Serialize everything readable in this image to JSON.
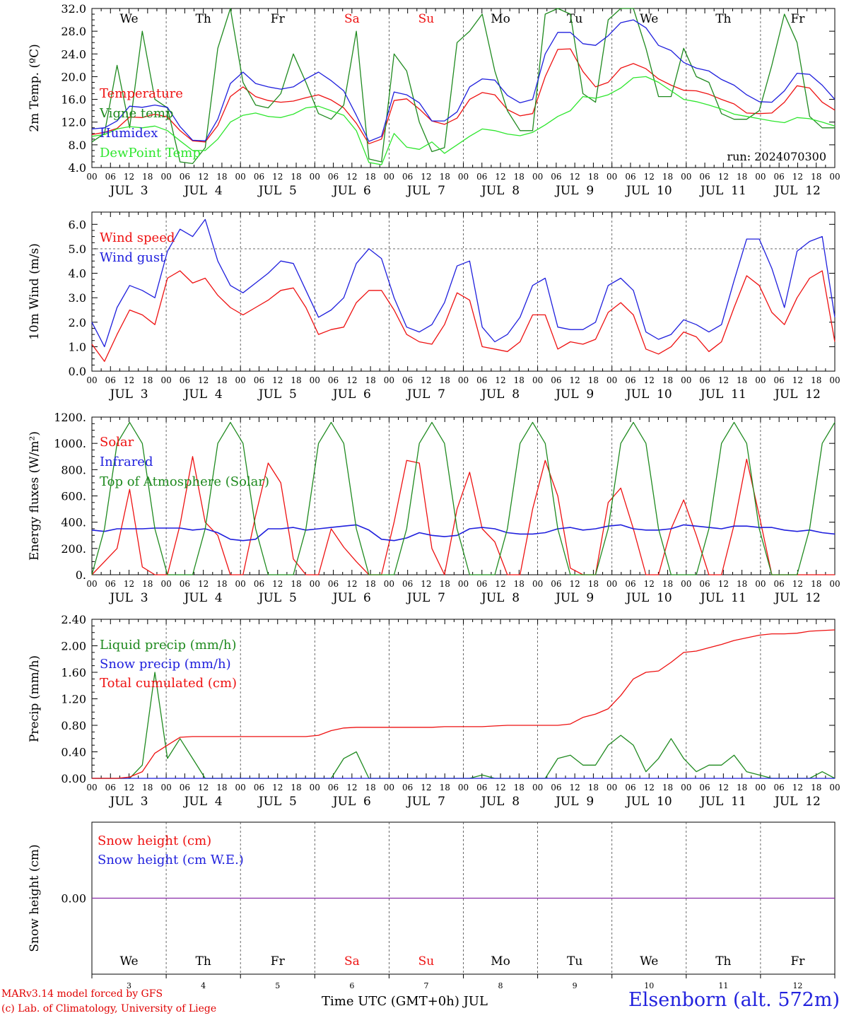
{
  "chart_data": {
    "type": "line",
    "title": "Elsenborn (alt. 572m)",
    "xlabel": "Time UTC (GMT+0h) JUL",
    "days": [
      "JUL 3",
      "JUL 4",
      "JUL 5",
      "JUL 6",
      "JUL 7",
      "JUL 8",
      "JUL 9",
      "JUL 10",
      "JUL 11",
      "JUL 12"
    ],
    "day_short": [
      "3",
      "4",
      "5",
      "6",
      "7",
      "8",
      "9",
      "10",
      "11",
      "12"
    ],
    "weekdays": [
      "We",
      "Th",
      "Fr",
      "Sa",
      "Su",
      "Mo",
      "Tu",
      "We",
      "Th",
      "Fr"
    ],
    "weekend_indices": [
      3,
      4
    ],
    "hour_ticks": [
      "00",
      "06",
      "12",
      "18"
    ],
    "run_label": "run: 2024070300",
    "panels": [
      {
        "id": "temp",
        "ylabel": "2m Temp. (ºC)",
        "ylim": [
          4,
          32
        ],
        "yticks": [
          "4.0",
          "8.0",
          "12.0",
          "16.0",
          "20.0",
          "24.0",
          "28.0",
          "32.0"
        ],
        "series": [
          {
            "name": "Temperature",
            "color": "#ee1111",
            "values": [
              9.8,
              10.2,
              10.9,
              12.9,
              12.8,
              13.4,
              12.9,
              10.5,
              8.7,
              8.5,
              11.4,
              16.5,
              18.2,
              16.5,
              15.8,
              15.5,
              15.7,
              16.3,
              16.8,
              15.9,
              14.5,
              11.8,
              8.2,
              9.0,
              15.8,
              16.1,
              14.3,
              12.2,
              11.6,
              12.7,
              16.0,
              17.2,
              16.8,
              14.2,
              13.1,
              13.5,
              20.0,
              24.8,
              24.9,
              20.9,
              18.2,
              19.0,
              21.5,
              22.3,
              21.4,
              19.6,
              18.5,
              17.6,
              17.5,
              16.9,
              16.0,
              15.2,
              13.6,
              13.5,
              13.6,
              15.5,
              18.4,
              18.0,
              15.5,
              14.1
            ]
          },
          {
            "name": "Vigne temp",
            "color": "#1f8a1f",
            "values": [
              8.5,
              10.0,
              22.0,
              11.0,
              28.0,
              16.0,
              14.5,
              5.0,
              4.7,
              7.5,
              25.0,
              32.0,
              19.0,
              15.0,
              14.5,
              17.0,
              24.0,
              19.0,
              13.5,
              12.5,
              15.0,
              28.0,
              5.5,
              5.0,
              24.0,
              21.0,
              12.0,
              6.8,
              7.5,
              26.0,
              28.0,
              31.0,
              21.0,
              14.0,
              10.5,
              10.5,
              31.0,
              33.0,
              31.0,
              17.0,
              15.5,
              30.0,
              32.0,
              33.0,
              25.0,
              16.5,
              16.5,
              25.0,
              20.0,
              19.0,
              13.5,
              12.5,
              12.5,
              14.0,
              22.0,
              31.0,
              26.0,
              13.0,
              11.0,
              11.0
            ]
          },
          {
            "name": "Humidex",
            "color": "#1f1fdd",
            "values": [
              10.8,
              11.0,
              12.2,
              14.8,
              14.6,
              15.0,
              14.6,
              11.2,
              8.8,
              8.7,
              12.5,
              18.8,
              20.8,
              18.8,
              18.2,
              17.8,
              18.2,
              19.6,
              20.8,
              19.3,
              17.5,
              13.2,
              8.6,
              9.5,
              17.3,
              16.8,
              15.4,
              12.2,
              12.2,
              13.8,
              18.2,
              19.6,
              19.4,
              16.7,
              15.4,
              16.0,
              24.0,
              27.8,
              27.8,
              25.8,
              25.5,
              27.2,
              29.5,
              30.0,
              28.6,
              25.5,
              24.6,
              22.5,
              21.5,
              21.0,
              19.5,
              18.5,
              16.8,
              15.6,
              15.5,
              17.5,
              20.6,
              20.4,
              18.5,
              16.0
            ]
          },
          {
            "name": "DewPoint Temp",
            "color": "#2ee62e",
            "values": [
              9.5,
              9.8,
              10.8,
              11.2,
              11.0,
              11.3,
              10.5,
              8.7,
              7.0,
              7.0,
              9.0,
              12.0,
              13.2,
              13.6,
              13.0,
              12.8,
              13.4,
              14.5,
              14.8,
              14.0,
              13.2,
              10.5,
              4.9,
              4.5,
              10.0,
              7.6,
              7.2,
              8.5,
              6.5,
              8.0,
              9.5,
              10.8,
              10.5,
              9.9,
              9.6,
              10.2,
              11.5,
              13.0,
              14.0,
              16.5,
              16.2,
              16.8,
              18.0,
              19.8,
              20.0,
              19.0,
              17.5,
              16.0,
              15.6,
              15.0,
              14.3,
              13.4,
              13.0,
              12.6,
              12.2,
              11.9,
              12.8,
              12.6,
              12.0,
              11.3
            ]
          }
        ]
      },
      {
        "id": "wind",
        "ylabel": "10m Wind (m/s)",
        "ylim": [
          0,
          6.5
        ],
        "yticks": [
          "0.0",
          "1.0",
          "2.0",
          "3.0",
          "4.0",
          "5.0",
          "6.0"
        ],
        "hline": 5.0,
        "series": [
          {
            "name": "Wind speed",
            "color": "#ee1111",
            "values": [
              1.1,
              0.4,
              1.5,
              2.5,
              2.3,
              1.9,
              3.8,
              4.1,
              3.6,
              3.8,
              3.1,
              2.6,
              2.3,
              2.6,
              2.9,
              3.3,
              3.4,
              2.6,
              1.5,
              1.7,
              1.8,
              2.8,
              3.3,
              3.3,
              2.5,
              1.5,
              1.2,
              1.1,
              1.9,
              3.2,
              2.9,
              1.0,
              0.9,
              0.8,
              1.2,
              2.3,
              2.3,
              0.9,
              1.2,
              1.1,
              1.3,
              2.4,
              2.8,
              2.3,
              0.9,
              0.7,
              1.0,
              1.6,
              1.4,
              0.8,
              1.2,
              2.6,
              3.9,
              3.5,
              2.4,
              1.9,
              3.0,
              3.8,
              4.1,
              1.2
            ]
          },
          {
            "name": "Wind gust",
            "color": "#1f1fdd",
            "values": [
              2.0,
              1.0,
              2.6,
              3.5,
              3.3,
              3.0,
              4.9,
              5.8,
              5.5,
              6.2,
              4.5,
              3.5,
              3.2,
              3.6,
              4.0,
              4.5,
              4.4,
              3.3,
              2.2,
              2.5,
              3.0,
              4.4,
              5.0,
              4.6,
              3.0,
              1.8,
              1.6,
              1.9,
              2.8,
              4.3,
              4.5,
              1.8,
              1.2,
              1.5,
              2.2,
              3.5,
              3.8,
              1.8,
              1.7,
              1.7,
              2.0,
              3.5,
              3.8,
              3.3,
              1.6,
              1.3,
              1.5,
              2.1,
              1.9,
              1.6,
              1.9,
              3.7,
              5.4,
              5.4,
              4.2,
              2.6,
              4.9,
              5.3,
              5.5,
              2.2
            ]
          }
        ]
      },
      {
        "id": "energy",
        "ylabel": "Energy fluxes (W/m²)",
        "ylim": [
          0,
          1200
        ],
        "yticks": [
          "0.",
          "200.",
          "400.",
          "600.",
          "800.",
          "1000.",
          "1200."
        ],
        "series": [
          {
            "name": "Solar",
            "color": "#ee1111",
            "values": [
              0,
              100,
              200,
              650,
              60,
              0,
              0,
              380,
              900,
              400,
              300,
              0,
              0,
              450,
              850,
              700,
              120,
              0,
              0,
              350,
              210,
              100,
              0,
              0,
              400,
              870,
              850,
              200,
              0,
              500,
              780,
              350,
              250,
              0,
              0,
              500,
              870,
              600,
              50,
              0,
              0,
              550,
              660,
              350,
              0,
              0,
              350,
              570,
              300,
              0,
              0,
              380,
              880,
              450,
              0,
              0,
              0,
              0,
              0,
              0
            ]
          },
          {
            "name": "Infrared",
            "color": "#1f1fdd",
            "values": [
              340,
              330,
              350,
              350,
              350,
              355,
              355,
              355,
              340,
              350,
              320,
              270,
              260,
              270,
              350,
              350,
              360,
              340,
              350,
              360,
              370,
              380,
              340,
              270,
              260,
              280,
              320,
              300,
              290,
              300,
              350,
              360,
              350,
              320,
              310,
              310,
              320,
              350,
              360,
              340,
              350,
              370,
              380,
              350,
              340,
              340,
              350,
              380,
              370,
              360,
              350,
              370,
              370,
              360,
              360,
              340,
              330,
              340,
              320,
              310
            ]
          },
          {
            "name": "Top of Atmosphere (Solar)",
            "color": "#1f8a1f",
            "values": [
              0,
              350,
              1000,
              1160,
              1000,
              350,
              0,
              0,
              0,
              350,
              1000,
              1160,
              1000,
              350,
              0,
              0,
              0,
              350,
              1000,
              1160,
              1000,
              350,
              0,
              0,
              0,
              350,
              1000,
              1160,
              1000,
              350,
              0,
              0,
              0,
              350,
              1000,
              1160,
              1000,
              350,
              0,
              0,
              0,
              350,
              1000,
              1160,
              1000,
              350,
              0,
              0,
              0,
              350,
              1000,
              1160,
              1000,
              350,
              0,
              0,
              0,
              350,
              1000,
              1160
            ]
          }
        ]
      },
      {
        "id": "precip",
        "ylabel": "Precip (mm/h)",
        "ylim": [
          0,
          2.4
        ],
        "yticks": [
          "0.00",
          "0.40",
          "0.80",
          "1.20",
          "1.60",
          "2.00",
          "2.40"
        ],
        "series": [
          {
            "name": "Liquid precip (mm/h)",
            "color": "#1f8a1f",
            "values": [
              0,
              0,
              0,
              0,
              0.2,
              1.6,
              0.3,
              0.6,
              0.3,
              0,
              0,
              0,
              0,
              0,
              0,
              0,
              0,
              0,
              0,
              0,
              0.3,
              0.4,
              0,
              0,
              0,
              0,
              0,
              0,
              0,
              0,
              0,
              0.05,
              0,
              0,
              0,
              0,
              0,
              0.3,
              0.35,
              0.2,
              0.2,
              0.5,
              0.65,
              0.5,
              0.1,
              0.3,
              0.6,
              0.3,
              0.1,
              0.2,
              0.2,
              0.35,
              0.1,
              0.05,
              0,
              0,
              0,
              0,
              0.1,
              0
            ]
          },
          {
            "name": "Snow precip (mm/h)",
            "color": "#1f1fdd",
            "values": [
              0,
              0,
              0,
              0,
              0,
              0,
              0,
              0,
              0,
              0,
              0,
              0,
              0,
              0,
              0,
              0,
              0,
              0,
              0,
              0,
              0,
              0,
              0,
              0,
              0,
              0,
              0,
              0,
              0,
              0,
              0,
              0,
              0,
              0,
              0,
              0,
              0,
              0,
              0,
              0,
              0,
              0,
              0,
              0,
              0,
              0,
              0,
              0,
              0,
              0,
              0,
              0,
              0,
              0,
              0,
              0,
              0,
              0,
              0,
              0
            ]
          },
          {
            "name": "Total cumulated (cm)",
            "color": "#ee1111",
            "values": [
              0,
              0,
              0,
              0.02,
              0.1,
              0.38,
              0.5,
              0.62,
              0.63,
              0.63,
              0.63,
              0.63,
              0.63,
              0.63,
              0.63,
              0.63,
              0.63,
              0.63,
              0.65,
              0.72,
              0.76,
              0.77,
              0.77,
              0.77,
              0.77,
              0.77,
              0.77,
              0.77,
              0.78,
              0.78,
              0.78,
              0.78,
              0.79,
              0.8,
              0.8,
              0.8,
              0.8,
              0.8,
              0.82,
              0.92,
              0.97,
              1.05,
              1.25,
              1.5,
              1.6,
              1.62,
              1.75,
              1.9,
              1.92,
              1.97,
              2.02,
              2.08,
              2.12,
              2.16,
              2.18,
              2.18,
              2.19,
              2.22,
              2.23,
              2.24
            ]
          }
        ]
      },
      {
        "id": "snow",
        "ylabel": "Snow height (cm)",
        "yticks": [
          "0.00"
        ],
        "series": [
          {
            "name": "Snow height (cm)",
            "color": "#ee1111",
            "values": [
              0,
              0
            ]
          },
          {
            "name": "Snow height (cm W.E.)",
            "color": "#1f1fdd",
            "values": [
              0,
              0
            ]
          }
        ]
      }
    ],
    "credits": [
      "MARv3.14 model forced by GFS",
      "(c) Lab. of Climatology, University of Liege"
    ]
  }
}
